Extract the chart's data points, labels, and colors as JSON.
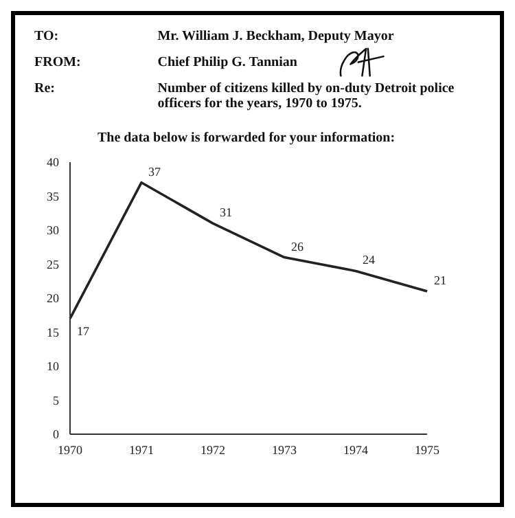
{
  "chart_data": {
    "type": "line",
    "title": "Number of citizens killed by on-duty Detroit police officers for the years, 1970 to 1975.",
    "subtitle": "The data below is forwarded for your information:",
    "annotations": [
      "TO:",
      "Mr. William J. Beckham, Deputy Mayor",
      "FROM:",
      "Chief Philip G. Tannian",
      "Re:"
    ],
    "categories": [
      "1970",
      "1971",
      "1972",
      "1973",
      "1974",
      "1975"
    ],
    "values": [
      17,
      37,
      31,
      26,
      24,
      21
    ],
    "color": "#222222",
    "ylim": [
      0,
      40
    ],
    "yticks": [
      0,
      5,
      10,
      15,
      20,
      25,
      30,
      35,
      40
    ],
    "grid": false,
    "data_labels": true,
    "marker": "none",
    "line_style": "solid"
  }
}
